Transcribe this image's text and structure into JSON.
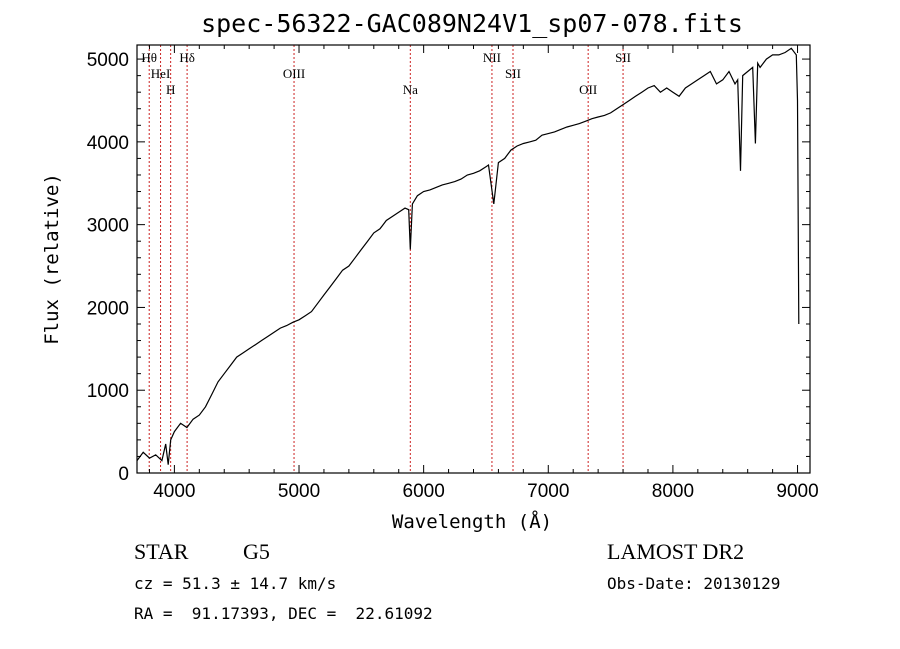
{
  "chart_data": {
    "type": "line",
    "title": "spec-56322-GAC089N24V1_sp07-078.fits",
    "xlabel": "Wavelength (Å)",
    "ylabel": "Flux (relative)",
    "xlim": [
      3700,
      9100
    ],
    "ylim": [
      0,
      5170
    ],
    "x_ticks": [
      4000,
      5000,
      6000,
      7000,
      8000,
      9000
    ],
    "y_ticks": [
      0,
      1000,
      2000,
      3000,
      4000,
      5000
    ],
    "grid": false,
    "series": [
      {
        "x": [
          3700,
          3750,
          3800,
          3850,
          3900,
          3930,
          3950,
          3970,
          4000,
          4050,
          4100,
          4150,
          4200,
          4250,
          4300,
          4350,
          4400,
          4450,
          4500,
          4550,
          4600,
          4650,
          4700,
          4750,
          4800,
          4850,
          4900,
          4950,
          5000,
          5050,
          5100,
          5150,
          5200,
          5250,
          5300,
          5350,
          5400,
          5450,
          5500,
          5550,
          5600,
          5650,
          5700,
          5750,
          5800,
          5850,
          5880,
          5893,
          5910,
          5950,
          6000,
          6050,
          6100,
          6150,
          6200,
          6250,
          6300,
          6350,
          6400,
          6450,
          6500,
          6520,
          6563,
          6600,
          6650,
          6700,
          6750,
          6800,
          6850,
          6900,
          6950,
          7000,
          7050,
          7100,
          7150,
          7200,
          7250,
          7300,
          7350,
          7400,
          7450,
          7500,
          7550,
          7600,
          7650,
          7700,
          7750,
          7800,
          7850,
          7900,
          7950,
          8000,
          8050,
          8100,
          8150,
          8200,
          8250,
          8300,
          8350,
          8400,
          8450,
          8498,
          8520,
          8542,
          8560,
          8600,
          8640,
          8662,
          8680,
          8700,
          8750,
          8800,
          8850,
          8900,
          8950,
          8990,
          9000,
          9010
        ],
        "y": [
          150,
          250,
          180,
          220,
          150,
          350,
          100,
          400,
          500,
          600,
          550,
          650,
          700,
          800,
          950,
          1100,
          1200,
          1300,
          1400,
          1450,
          1500,
          1550,
          1600,
          1650,
          1700,
          1750,
          1780,
          1820,
          1850,
          1900,
          1950,
          2050,
          2150,
          2250,
          2350,
          2450,
          2500,
          2600,
          2700,
          2800,
          2900,
          2950,
          3050,
          3100,
          3150,
          3200,
          3180,
          2700,
          3250,
          3350,
          3400,
          3420,
          3450,
          3480,
          3500,
          3520,
          3550,
          3600,
          3620,
          3650,
          3700,
          3720,
          3250,
          3750,
          3800,
          3900,
          3950,
          3980,
          4000,
          4020,
          4080,
          4100,
          4120,
          4150,
          4180,
          4200,
          4220,
          4250,
          4280,
          4300,
          4320,
          4350,
          4400,
          4450,
          4500,
          4550,
          4600,
          4650,
          4680,
          4600,
          4650,
          4600,
          4550,
          4650,
          4700,
          4750,
          4800,
          4850,
          4700,
          4750,
          4850,
          4700,
          4750,
          3650,
          4800,
          4850,
          4900,
          3980,
          4950,
          4900,
          5000,
          5050,
          5050,
          5080,
          5130,
          5050,
          4500,
          1800
        ]
      }
    ]
  },
  "spectral_lines": [
    {
      "label": "Hθ",
      "wavelength": 3798
    },
    {
      "label": "HeI",
      "wavelength": 3889
    },
    {
      "label": "H",
      "wavelength": 3970
    },
    {
      "label": "Hδ",
      "wavelength": 4102
    },
    {
      "label": "OIII",
      "wavelength": 4960
    },
    {
      "label": "Na",
      "wavelength": 5893
    },
    {
      "label": "NII",
      "wavelength": 6548
    },
    {
      "label": "SII",
      "wavelength": 6717
    },
    {
      "label": "OII",
      "wavelength": 7320
    },
    {
      "label": "SII",
      "wavelength": 7600
    }
  ],
  "info": {
    "class": "STAR",
    "subclass": "G5",
    "survey": "LAMOST DR2",
    "cz": "cz = 51.3 ± 14.7 km/s",
    "obs_date": "Obs-Date: 20130129",
    "radec": "RA =  91.17393, DEC =  22.61092"
  },
  "colors": {
    "spectrum": "#000000",
    "line_marker": "#cc2222",
    "axes": "#000000"
  }
}
